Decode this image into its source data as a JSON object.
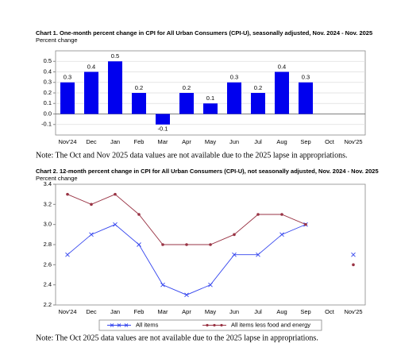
{
  "chart_data": [
    {
      "type": "bar",
      "title": "Chart 1. One-month percent change in CPI for All Urban Consumers (CPI-U), seasonally adjusted, Nov. 2024 - Nov. 2025",
      "y_label": "Percent change",
      "categories": [
        "Nov'24",
        "Dec",
        "Jan",
        "Feb",
        "Mar",
        "Apr",
        "May",
        "Jun",
        "Jul",
        "Aug",
        "Sep",
        "Oct",
        "Nov'25"
      ],
      "values": [
        0.3,
        0.4,
        0.5,
        0.2,
        -0.1,
        0.2,
        0.1,
        0.3,
        0.2,
        0.4,
        0.3,
        null,
        null
      ],
      "color": "#0000ee",
      "ylim": [
        -0.2,
        0.6
      ],
      "yticks": [
        -0.1,
        {
          "value": 0,
          "label": "0.0"
        },
        0.1,
        0.2,
        0.3,
        0.4,
        0.5
      ],
      "grid": true,
      "note": "Note: The Oct and Nov 2025 data values are not available due to the 2025 lapse in appropriations."
    },
    {
      "type": "line",
      "title": "Chart 2. 12-month percent change in CPI for All Urban Consumers (CPI-U), not seasonally adjusted, Nov. 2024 - Nov. 2025",
      "y_label": "Percent change",
      "categories": [
        "Nov'24",
        "Dec",
        "Jan",
        "Feb",
        "Mar",
        "Apr",
        "May",
        "Jun",
        "Jul",
        "Aug",
        "Sep",
        "Oct",
        "Nov'25"
      ],
      "series": [
        {
          "name": "All items",
          "color": "#3344ee",
          "values": [
            2.7,
            2.9,
            3.0,
            2.8,
            2.4,
            2.3,
            2.4,
            2.7,
            2.7,
            2.9,
            3.0,
            null,
            2.7
          ]
        },
        {
          "name": "All items less food and energy",
          "color": "#993344",
          "values": [
            3.3,
            3.2,
            3.3,
            3.1,
            2.8,
            2.8,
            2.8,
            2.9,
            3.1,
            3.1,
            3.0,
            null,
            2.6
          ]
        }
      ],
      "ylim": [
        2.2,
        3.4
      ],
      "yticks": [
        2.2,
        2.4,
        2.6,
        2.8,
        {
          "value": 3,
          "label": "3.0"
        },
        3.2,
        3.4
      ],
      "grid": false,
      "note": "Note: The Oct 2025 data values are not available due to the 2025 lapse in appropriations."
    }
  ]
}
